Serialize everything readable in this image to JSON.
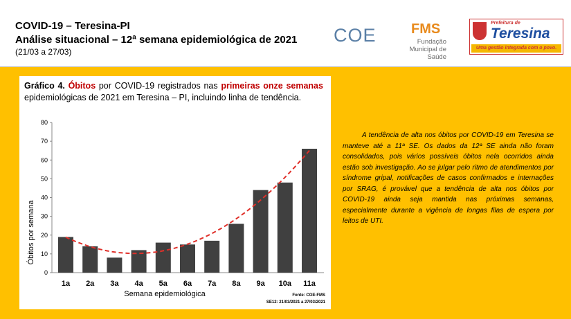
{
  "header": {
    "title": "COVID-19 – Teresina-PI",
    "subtitle": "Análise situacional – 12ª semana epidemiológica de 2021",
    "period": "(21/03 a 27/03)"
  },
  "logos": {
    "coe": "COE",
    "fms": "FMS",
    "fms_name": "Fundação Municipal de Saúde",
    "prefeitura": "Prefeitura de",
    "teresina": "Teresina",
    "slogan": "Uma gestão integrada com o povo."
  },
  "caption": [
    "Gráfico 4.",
    "Óbitos",
    "por COVID-19 registrados nas",
    "primeiras onze semanas",
    "epidemiológicas de 2021 em Teresina – PI, incluindo linha de tendência."
  ],
  "chart_data": {
    "type": "bar",
    "categories": [
      "1a",
      "2a",
      "3a",
      "4a",
      "5a",
      "6a",
      "7a",
      "8a",
      "9a",
      "10a",
      "11a"
    ],
    "values": [
      19,
      14,
      8,
      12,
      16,
      15,
      17,
      26,
      44,
      48,
      66
    ],
    "color": "#404040",
    "ylim": [
      0,
      80
    ],
    "yticks": [
      0,
      10,
      20,
      30,
      40,
      50,
      60,
      70,
      80
    ],
    "x_label": "Semana epidemiológica",
    "y_label": "Óbitos por semana",
    "trendline": {
      "type": "polynomial",
      "order": 2,
      "color": "#e0302a"
    },
    "source": "Fonte: COE-FMS",
    "source_period": "SE12: 21/03/2021 a 27/03/2021"
  },
  "analysis_text": "A tendência de alta nos óbitos por COVID-19 em Teresina se manteve até a 11ª SE. Os dados da 12ª SE ainda não foram consolidados, pois vários possíveis óbitos nela ocorridos ainda estão sob investigação. Ao se julgar pelo ritmo de atendimentos por síndrome gripal, notificações de casos confirmados e internações por SRAG, é provável que a tendência de alta nos óbitos por COVID-19 ainda seja mantida nas próximas semanas, especialmente durante a vigência de longas filas de espera por leitos de UTI."
}
